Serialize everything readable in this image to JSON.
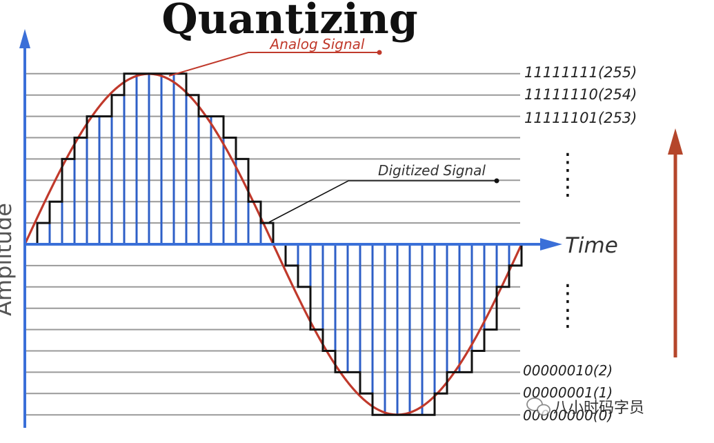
{
  "title": "Quantizing",
  "labels": {
    "analog": "Analog Signal",
    "digitized": "Digitized Signal",
    "time": "Time",
    "amplitude": "Amplitude"
  },
  "levels": [
    {
      "text": "11111111(255)"
    },
    {
      "text": "11111110(254)"
    },
    {
      "text": "11111101(253)"
    },
    {
      "text": "00000010(2)"
    },
    {
      "text": "00000001(1)"
    },
    {
      "text": "00000000(0)"
    }
  ],
  "ellipsis": "⋮",
  "watermark": {
    "text": "八小时码字员",
    "icon": "wechat-icon"
  },
  "colors": {
    "analog": "#c0392b",
    "digital": "#111111",
    "sample": "#2e5fc7",
    "axis": "#3a6fd8",
    "grid": "#999999",
    "arrow": "#b5462b",
    "level_text": "#222222"
  }
}
